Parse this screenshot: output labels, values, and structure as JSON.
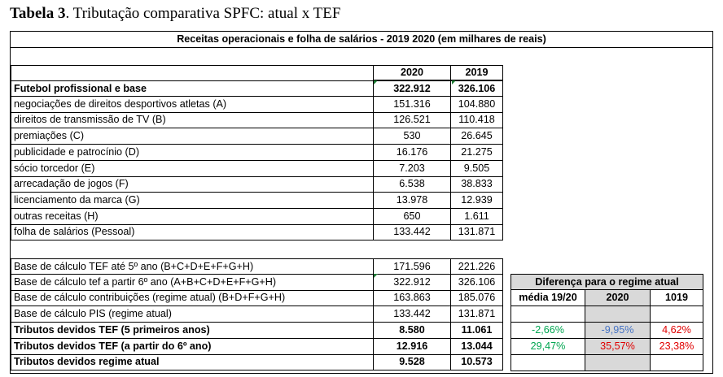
{
  "caption": {
    "label": "Tabela 3",
    "text": ". Tributação comparativa SPFC: atual x TEF"
  },
  "table": {
    "title": "Receitas operacionais e folha de salários - 2019 2020 (em milhares de reais)",
    "col_2020": "2020",
    "col_2019": "2019",
    "rows": [
      {
        "label": "Futebol profissional e base",
        "v2020": "322.912",
        "v2019": "326.106"
      },
      {
        "label": "negociações de direitos desportivos atletas (A)",
        "v2020": "151.316",
        "v2019": "104.880"
      },
      {
        "label": "direitos de transmissão de TV (B)",
        "v2020": "126.521",
        "v2019": "110.418"
      },
      {
        "label": "premiações (C)",
        "v2020": "530",
        "v2019": "26.645"
      },
      {
        "label": "publicidade e patrocínio (D)",
        "v2020": "16.176",
        "v2019": "21.275"
      },
      {
        "label": "sócio torcedor (E)",
        "v2020": "7.203",
        "v2019": "9.505"
      },
      {
        "label": "arrecadação de jogos (F)",
        "v2020": "6.538",
        "v2019": "38.833"
      },
      {
        "label": "licenciamento da marca (G)",
        "v2020": "13.978",
        "v2019": "12.939"
      },
      {
        "label": "outras receitas (H)",
        "v2020": "650",
        "v2019": "1.611"
      },
      {
        "label": "folha de salários (Pessoal)",
        "v2020": "133.442",
        "v2019": "131.871"
      }
    ],
    "rows2": [
      {
        "label": "Base de cálculo TEF até 5º ano (B+C+D+E+F+G+H)",
        "v2020": "171.596",
        "v2019": "221.226"
      },
      {
        "label": "Base de cálculo tef a partir 6º ano (A+B+C+D+E+F+G+H)",
        "v2020": "322.912",
        "v2019": "326.106"
      },
      {
        "label": "Base de cálculo contribuições (regime atual) (B+D+F+G+H)",
        "v2020": "163.863",
        "v2019": "185.076"
      },
      {
        "label": "Base de cálculo PIS (regime atual)",
        "v2020": "133.442",
        "v2019": "131.871"
      },
      {
        "label": "Tributos devidos TEF (5 primeiros anos)",
        "v2020": "8.580",
        "v2019": "11.061"
      },
      {
        "label": "Tributos devidos TEF (a partir do 6º ano)",
        "v2020": "12.916",
        "v2019": "13.044"
      },
      {
        "label": "Tributos devidos regime atual",
        "v2020": "9.528",
        "v2019": "10.573"
      }
    ]
  },
  "diff": {
    "title": "Diferença para o regime atual",
    "headers": [
      "média 19/20",
      "2020",
      "1019"
    ],
    "row1": [
      "-2,66%",
      "-9,95%",
      "4,62%"
    ],
    "row2": [
      "29,47%",
      "35,57%",
      "23,38%"
    ],
    "colors": {
      "positive_green": "#00a651",
      "negative_blue": "#4472c4",
      "red": "#e00000",
      "header_grey": "#d9d9d9"
    }
  }
}
